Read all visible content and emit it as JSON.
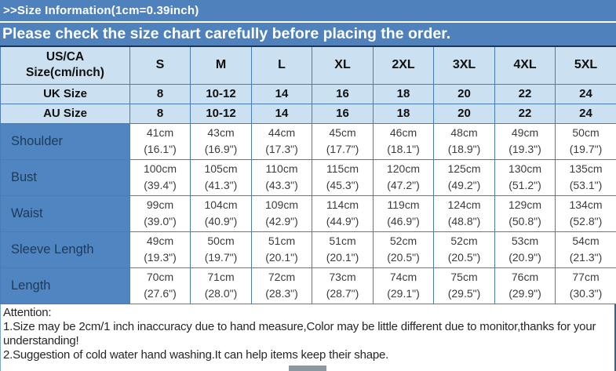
{
  "header": {
    "title": ">>Size Information(1cm=0.39inch)",
    "banner": "Please check the size chart carefully before placing the order."
  },
  "table": {
    "corner_header": "US/CA\nSize(cm/inch)",
    "size_columns": [
      "S",
      "M",
      "L",
      "XL",
      "2XL",
      "3XL",
      "4XL",
      "5XL"
    ],
    "size_rows": [
      {
        "label": "UK Size",
        "values": [
          "8",
          "10-12",
          "14",
          "16",
          "18",
          "20",
          "22",
          "24"
        ]
      },
      {
        "label": "AU Size",
        "values": [
          "8",
          "10-12",
          "14",
          "16",
          "18",
          "20",
          "22",
          "24"
        ]
      }
    ],
    "measure_rows": [
      {
        "label": "Shoulder",
        "values": [
          {
            "cm": "41cm",
            "inch": "(16.1\")"
          },
          {
            "cm": "43cm",
            "inch": "(16.9\")"
          },
          {
            "cm": "44cm",
            "inch": "(17.3\")"
          },
          {
            "cm": "45cm",
            "inch": "(17.7\")"
          },
          {
            "cm": "46cm",
            "inch": "(18.1\")"
          },
          {
            "cm": "48cm",
            "inch": "(18.9\")"
          },
          {
            "cm": "49cm",
            "inch": "(19.3\")"
          },
          {
            "cm": "50cm",
            "inch": "(19.7\")"
          }
        ]
      },
      {
        "label": "Bust",
        "values": [
          {
            "cm": "100cm",
            "inch": "(39.4\")"
          },
          {
            "cm": "105cm",
            "inch": "(41.3\")"
          },
          {
            "cm": "110cm",
            "inch": "(43.3\")"
          },
          {
            "cm": "115cm",
            "inch": "(45.3\")"
          },
          {
            "cm": "120cm",
            "inch": "(47.2\")"
          },
          {
            "cm": "125cm",
            "inch": "(49.2\")"
          },
          {
            "cm": "130cm",
            "inch": "(51.2\")"
          },
          {
            "cm": "135cm",
            "inch": "(53.1\")"
          }
        ]
      },
      {
        "label": "Waist",
        "values": [
          {
            "cm": "99cm",
            "inch": "(39.0\")"
          },
          {
            "cm": "104cm",
            "inch": "(40.9\")"
          },
          {
            "cm": "109cm",
            "inch": "(42.9\")"
          },
          {
            "cm": "114cm",
            "inch": "(44.9\")"
          },
          {
            "cm": "119cm",
            "inch": "(46.9\")"
          },
          {
            "cm": "124cm",
            "inch": "(48.8\")"
          },
          {
            "cm": "129cm",
            "inch": "(50.8\")"
          },
          {
            "cm": "134cm",
            "inch": "(52.8\")"
          }
        ]
      },
      {
        "label": "Sleeve Length",
        "values": [
          {
            "cm": "49cm",
            "inch": "(19.3\")"
          },
          {
            "cm": "50cm",
            "inch": "(19.7\")"
          },
          {
            "cm": "51cm",
            "inch": "(20.1\")"
          },
          {
            "cm": "51cm",
            "inch": "(20.1\")"
          },
          {
            "cm": "52cm",
            "inch": "(20.5\")"
          },
          {
            "cm": "52cm",
            "inch": "(20.5\")"
          },
          {
            "cm": "53cm",
            "inch": "(20.9\")"
          },
          {
            "cm": "54cm",
            "inch": "(21.3\")"
          }
        ]
      },
      {
        "label": "Length",
        "values": [
          {
            "cm": "70cm",
            "inch": "(27.6\")"
          },
          {
            "cm": "71cm",
            "inch": "(28.0\")"
          },
          {
            "cm": "72cm",
            "inch": "(28.3\")"
          },
          {
            "cm": "73cm",
            "inch": "(28.7\")"
          },
          {
            "cm": "74cm",
            "inch": "(29.1\")"
          },
          {
            "cm": "75cm",
            "inch": "(29.5\")"
          },
          {
            "cm": "76cm",
            "inch": "(29.9\")"
          },
          {
            "cm": "77cm",
            "inch": "(30.3\")"
          }
        ]
      }
    ]
  },
  "attention": {
    "heading": "Attention:",
    "lines": [
      "1.Size may be 2cm/1 inch inaccuracy due to hand measure,Color may be little different due to monitor,thanks for your understanding!",
      "2.Suggestion of cold water hand washing.It can help items keep their shape."
    ]
  },
  "colors": {
    "banner_blue": "#4f81bd",
    "light_cell_blue": "#cbe0f1",
    "label_cell_blue": "#4f86c1",
    "table_border_blue": "#4a7db8",
    "table_top_border_navy": "#17375e",
    "scroll_thumb_gray": "#8d979e"
  }
}
